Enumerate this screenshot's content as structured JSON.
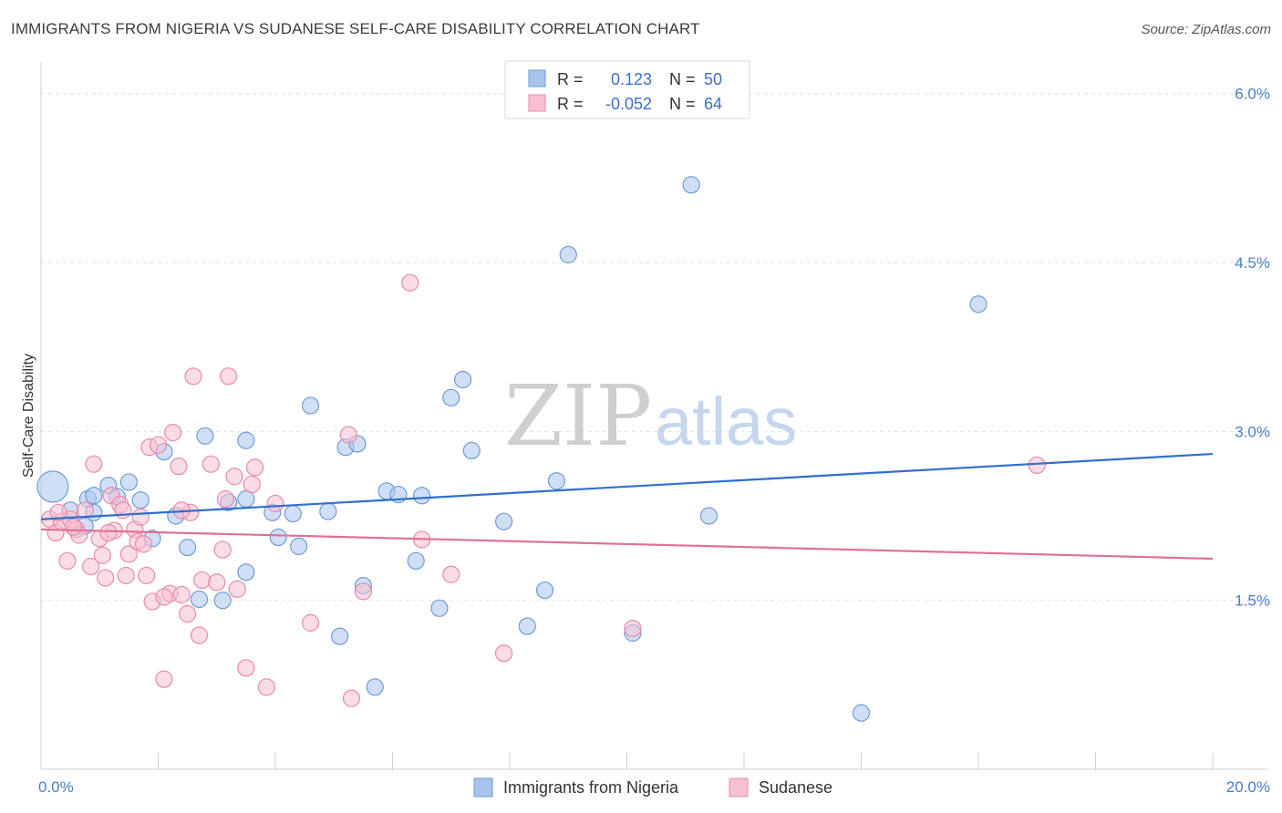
{
  "title": "IMMIGRANTS FROM NIGERIA VS SUDANESE SELF-CARE DISABILITY CORRELATION CHART",
  "source": "Source: ZipAtlas.com",
  "watermark": {
    "zip": "ZIP",
    "atlas": "atlas"
  },
  "legend_top": [
    {
      "r_label": "R =",
      "r_value": "0.123",
      "n_label": "N =",
      "n_value": "50",
      "color": "#a9c4ec",
      "stroke": "#6f9bd8"
    },
    {
      "r_label": "R =",
      "r_value": "-0.052",
      "n_label": "N =",
      "n_value": "64",
      "color": "#f6bfd2",
      "stroke": "#e98aab"
    }
  ],
  "chart_data": {
    "type": "scatter",
    "ylabel": "Self-Care Disability",
    "xlim": [
      0,
      20
    ],
    "ylim": [
      0,
      6.2
    ],
    "x_tick_labels": [
      {
        "value": 0,
        "label": "0.0%"
      },
      {
        "value": 20,
        "label": "20.0%"
      }
    ],
    "y_tick_labels": [
      {
        "value": 1.5,
        "label": "1.5%"
      },
      {
        "value": 3.0,
        "label": "3.0%"
      },
      {
        "value": 4.5,
        "label": "4.5%"
      },
      {
        "value": 6.0,
        "label": "6.0%"
      }
    ],
    "grid": "horizontal dashed",
    "legend_position": "top-center",
    "series": [
      {
        "name": "Immigrants from Nigeria",
        "color": "#a9c4ec",
        "stroke": "#6f9bd8",
        "line_color": "#2f6fcf",
        "trend": [
          [
            0,
            2.22
          ],
          [
            20,
            2.8
          ]
        ],
        "points": [
          [
            0.2,
            2.51
          ],
          [
            0.8,
            2.4
          ],
          [
            0.9,
            2.43
          ],
          [
            1.15,
            2.52
          ],
          [
            1.3,
            2.42
          ],
          [
            1.5,
            2.55
          ],
          [
            1.7,
            2.39
          ],
          [
            0.75,
            2.16
          ],
          [
            0.9,
            2.28
          ],
          [
            1.9,
            2.05
          ],
          [
            2.1,
            2.82
          ],
          [
            2.3,
            2.25
          ],
          [
            2.5,
            1.97
          ],
          [
            2.7,
            1.51
          ],
          [
            2.8,
            2.96
          ],
          [
            3.1,
            1.5
          ],
          [
            3.2,
            2.37
          ],
          [
            3.5,
            2.92
          ],
          [
            3.5,
            2.4
          ],
          [
            3.5,
            1.75
          ],
          [
            3.95,
            2.28
          ],
          [
            4.05,
            2.06
          ],
          [
            4.3,
            2.27
          ],
          [
            4.4,
            1.98
          ],
          [
            4.6,
            3.23
          ],
          [
            4.9,
            2.29
          ],
          [
            5.1,
            1.18
          ],
          [
            5.2,
            2.86
          ],
          [
            5.4,
            2.89
          ],
          [
            5.5,
            1.63
          ],
          [
            5.7,
            0.73
          ],
          [
            5.9,
            2.47
          ],
          [
            6.1,
            2.44
          ],
          [
            6.4,
            1.85
          ],
          [
            6.5,
            2.43
          ],
          [
            6.8,
            1.43
          ],
          [
            7.0,
            3.3
          ],
          [
            7.2,
            3.46
          ],
          [
            7.35,
            2.83
          ],
          [
            7.9,
            2.2
          ],
          [
            8.3,
            1.27
          ],
          [
            8.6,
            1.59
          ],
          [
            8.8,
            2.56
          ],
          [
            9.0,
            4.57
          ],
          [
            10.1,
            1.21
          ],
          [
            11.1,
            5.19
          ],
          [
            11.4,
            2.25
          ],
          [
            16.0,
            4.13
          ],
          [
            14.0,
            0.5
          ],
          [
            0.5,
            2.3
          ]
        ]
      },
      {
        "name": "Sudanese",
        "color": "#f6bfd2",
        "stroke": "#e98aab",
        "line_color": "#e0709a",
        "trend": [
          [
            0,
            2.13
          ],
          [
            20,
            1.87
          ]
        ],
        "points": [
          [
            0.15,
            2.22
          ],
          [
            0.25,
            2.1
          ],
          [
            0.35,
            2.2
          ],
          [
            0.5,
            2.22
          ],
          [
            0.6,
            2.13
          ],
          [
            0.65,
            2.08
          ],
          [
            0.75,
            2.3
          ],
          [
            0.9,
            2.71
          ],
          [
            0.85,
            1.8
          ],
          [
            1.0,
            2.05
          ],
          [
            1.05,
            1.9
          ],
          [
            1.1,
            1.7
          ],
          [
            1.2,
            2.43
          ],
          [
            1.25,
            2.12
          ],
          [
            1.35,
            2.35
          ],
          [
            1.4,
            2.3
          ],
          [
            1.45,
            1.72
          ],
          [
            1.5,
            1.91
          ],
          [
            1.6,
            2.13
          ],
          [
            1.65,
            2.02
          ],
          [
            1.7,
            2.24
          ],
          [
            1.75,
            2.0
          ],
          [
            1.8,
            1.72
          ],
          [
            1.85,
            2.86
          ],
          [
            1.9,
            1.49
          ],
          [
            2.0,
            2.88
          ],
          [
            2.1,
            0.8
          ],
          [
            2.2,
            1.56
          ],
          [
            2.25,
            2.99
          ],
          [
            2.35,
            2.69
          ],
          [
            2.4,
            1.55
          ],
          [
            2.5,
            1.38
          ],
          [
            2.55,
            2.28
          ],
          [
            2.6,
            3.49
          ],
          [
            2.7,
            1.19
          ],
          [
            2.75,
            1.68
          ],
          [
            2.9,
            2.71
          ],
          [
            3.0,
            1.66
          ],
          [
            3.1,
            1.95
          ],
          [
            3.15,
            2.4
          ],
          [
            3.2,
            3.49
          ],
          [
            3.3,
            2.6
          ],
          [
            3.35,
            1.6
          ],
          [
            3.5,
            0.9
          ],
          [
            3.6,
            2.53
          ],
          [
            3.65,
            2.68
          ],
          [
            3.85,
            0.73
          ],
          [
            4.0,
            2.36
          ],
          [
            4.6,
            1.3
          ],
          [
            5.25,
            2.97
          ],
          [
            5.3,
            0.63
          ],
          [
            5.5,
            1.58
          ],
          [
            6.3,
            4.32
          ],
          [
            6.5,
            2.04
          ],
          [
            7.0,
            1.73
          ],
          [
            7.9,
            1.03
          ],
          [
            10.1,
            1.25
          ],
          [
            17.0,
            2.7
          ],
          [
            0.45,
            1.85
          ],
          [
            1.15,
            2.1
          ],
          [
            0.3,
            2.28
          ],
          [
            2.4,
            2.3
          ],
          [
            0.55,
            2.15
          ],
          [
            2.1,
            1.53
          ]
        ]
      }
    ]
  },
  "legend_bottom": [
    {
      "label": "Immigrants from Nigeria",
      "color": "#a9c4ec",
      "stroke": "#6f9bd8"
    },
    {
      "label": "Sudanese",
      "color": "#f6bfd2",
      "stroke": "#e98aab"
    }
  ]
}
